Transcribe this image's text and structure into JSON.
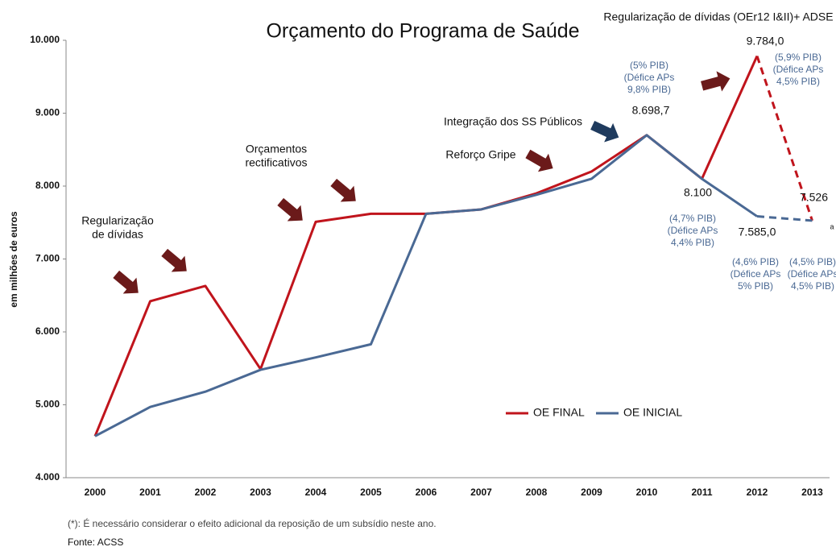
{
  "chart_data": {
    "type": "line",
    "title": "Orçamento do Programa de Saúde",
    "y_label": "em milhões de euros",
    "categories": [
      "2000",
      "2001",
      "2002",
      "2003",
      "2004",
      "2005",
      "2006",
      "2007",
      "2008",
      "2009",
      "2010",
      "2011",
      "2012",
      "2013"
    ],
    "series": [
      {
        "name": "OE FINAL",
        "color": "#c0141c",
        "last_segment_dashed": true,
        "values": [
          4570,
          6420,
          6630,
          5490,
          7510,
          7620,
          7620,
          7680,
          7900,
          8200,
          8698.7,
          8100,
          9784.0,
          7526
        ],
        "value_labels": [
          null,
          null,
          null,
          null,
          null,
          null,
          null,
          null,
          null,
          null,
          "8.698,7",
          "8.100",
          "9.784,0",
          "7.526"
        ]
      },
      {
        "name": "OE INICIAL",
        "color": "#4a6994",
        "last_segment_dashed": true,
        "values": [
          4570,
          4970,
          5180,
          5480,
          5650,
          5830,
          7620,
          7680,
          7880,
          8100,
          8698.7,
          8100,
          7585.0,
          7526
        ],
        "value_labels": [
          null,
          null,
          null,
          null,
          null,
          null,
          null,
          null,
          null,
          null,
          null,
          null,
          "7.585,0",
          null
        ]
      }
    ],
    "ylim": [
      4000,
      10000
    ],
    "yticks": [
      {
        "value": 4000,
        "label": "4.000"
      },
      {
        "value": 5000,
        "label": "5.000"
      },
      {
        "value": 6000,
        "label": "6.000"
      },
      {
        "value": 7000,
        "label": "7.000"
      },
      {
        "value": 8000,
        "label": "8.000"
      },
      {
        "value": 9000,
        "label": "9.000"
      },
      {
        "value": 10000,
        "label": "10.000"
      }
    ],
    "annotations": [
      [
        "Regularização de dívidas (OEr12 I&II)+ ADSE"
      ],
      [
        "(5% PIB)",
        "(Défice APs",
        "9,8% PIB)"
      ],
      [
        "(5,9% PIB)",
        "(Défice APs",
        "4,5% PIB)"
      ],
      [
        "Integração dos SS Públicos"
      ],
      [
        "Reforço Gripe"
      ],
      [
        "Orçamentos",
        "rectificativos"
      ],
      [
        "Regularização",
        "de dívidas"
      ],
      [
        "(4,7% PIB)",
        "(Défice APs",
        "4,4%  PIB)"
      ],
      [
        "(4,6% PIB)",
        "(Défice APs",
        "5% PIB)"
      ],
      [
        "(4,5% PIB)",
        "(Défice APs",
        "4,5% PIB)"
      ],
      [
        "a"
      ]
    ],
    "legend": "bottom-right",
    "footnote": "(*): É necessário considerar o efeito adicional da reposição de um subsídio neste ano.",
    "source": "Fonte: ACSS"
  }
}
